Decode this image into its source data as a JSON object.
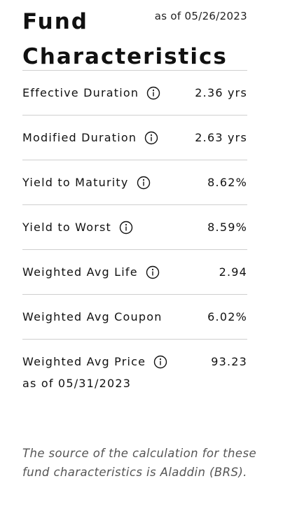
{
  "header": {
    "title": "Fund Characteristics",
    "as_of": "as of 05/26/2023"
  },
  "rows": [
    {
      "label": "Effective Duration",
      "value": "2.36 yrs"
    },
    {
      "label": "Modified Duration",
      "value": "2.63 yrs"
    },
    {
      "label": "Yield to Maturity",
      "value": "8.62%"
    },
    {
      "label": "Yield to Worst",
      "value": "8.59%"
    },
    {
      "label": "Weighted Avg Life",
      "value": "2.94"
    },
    {
      "label": "Weighted Avg Coupon",
      "value": "6.02%"
    },
    {
      "label": "Weighted Avg Price",
      "value": "93.23",
      "note": "as of 05/31/2023"
    }
  ],
  "footnote": "The source of the calculation for these fund characteristics is Aladdin (BRS)."
}
